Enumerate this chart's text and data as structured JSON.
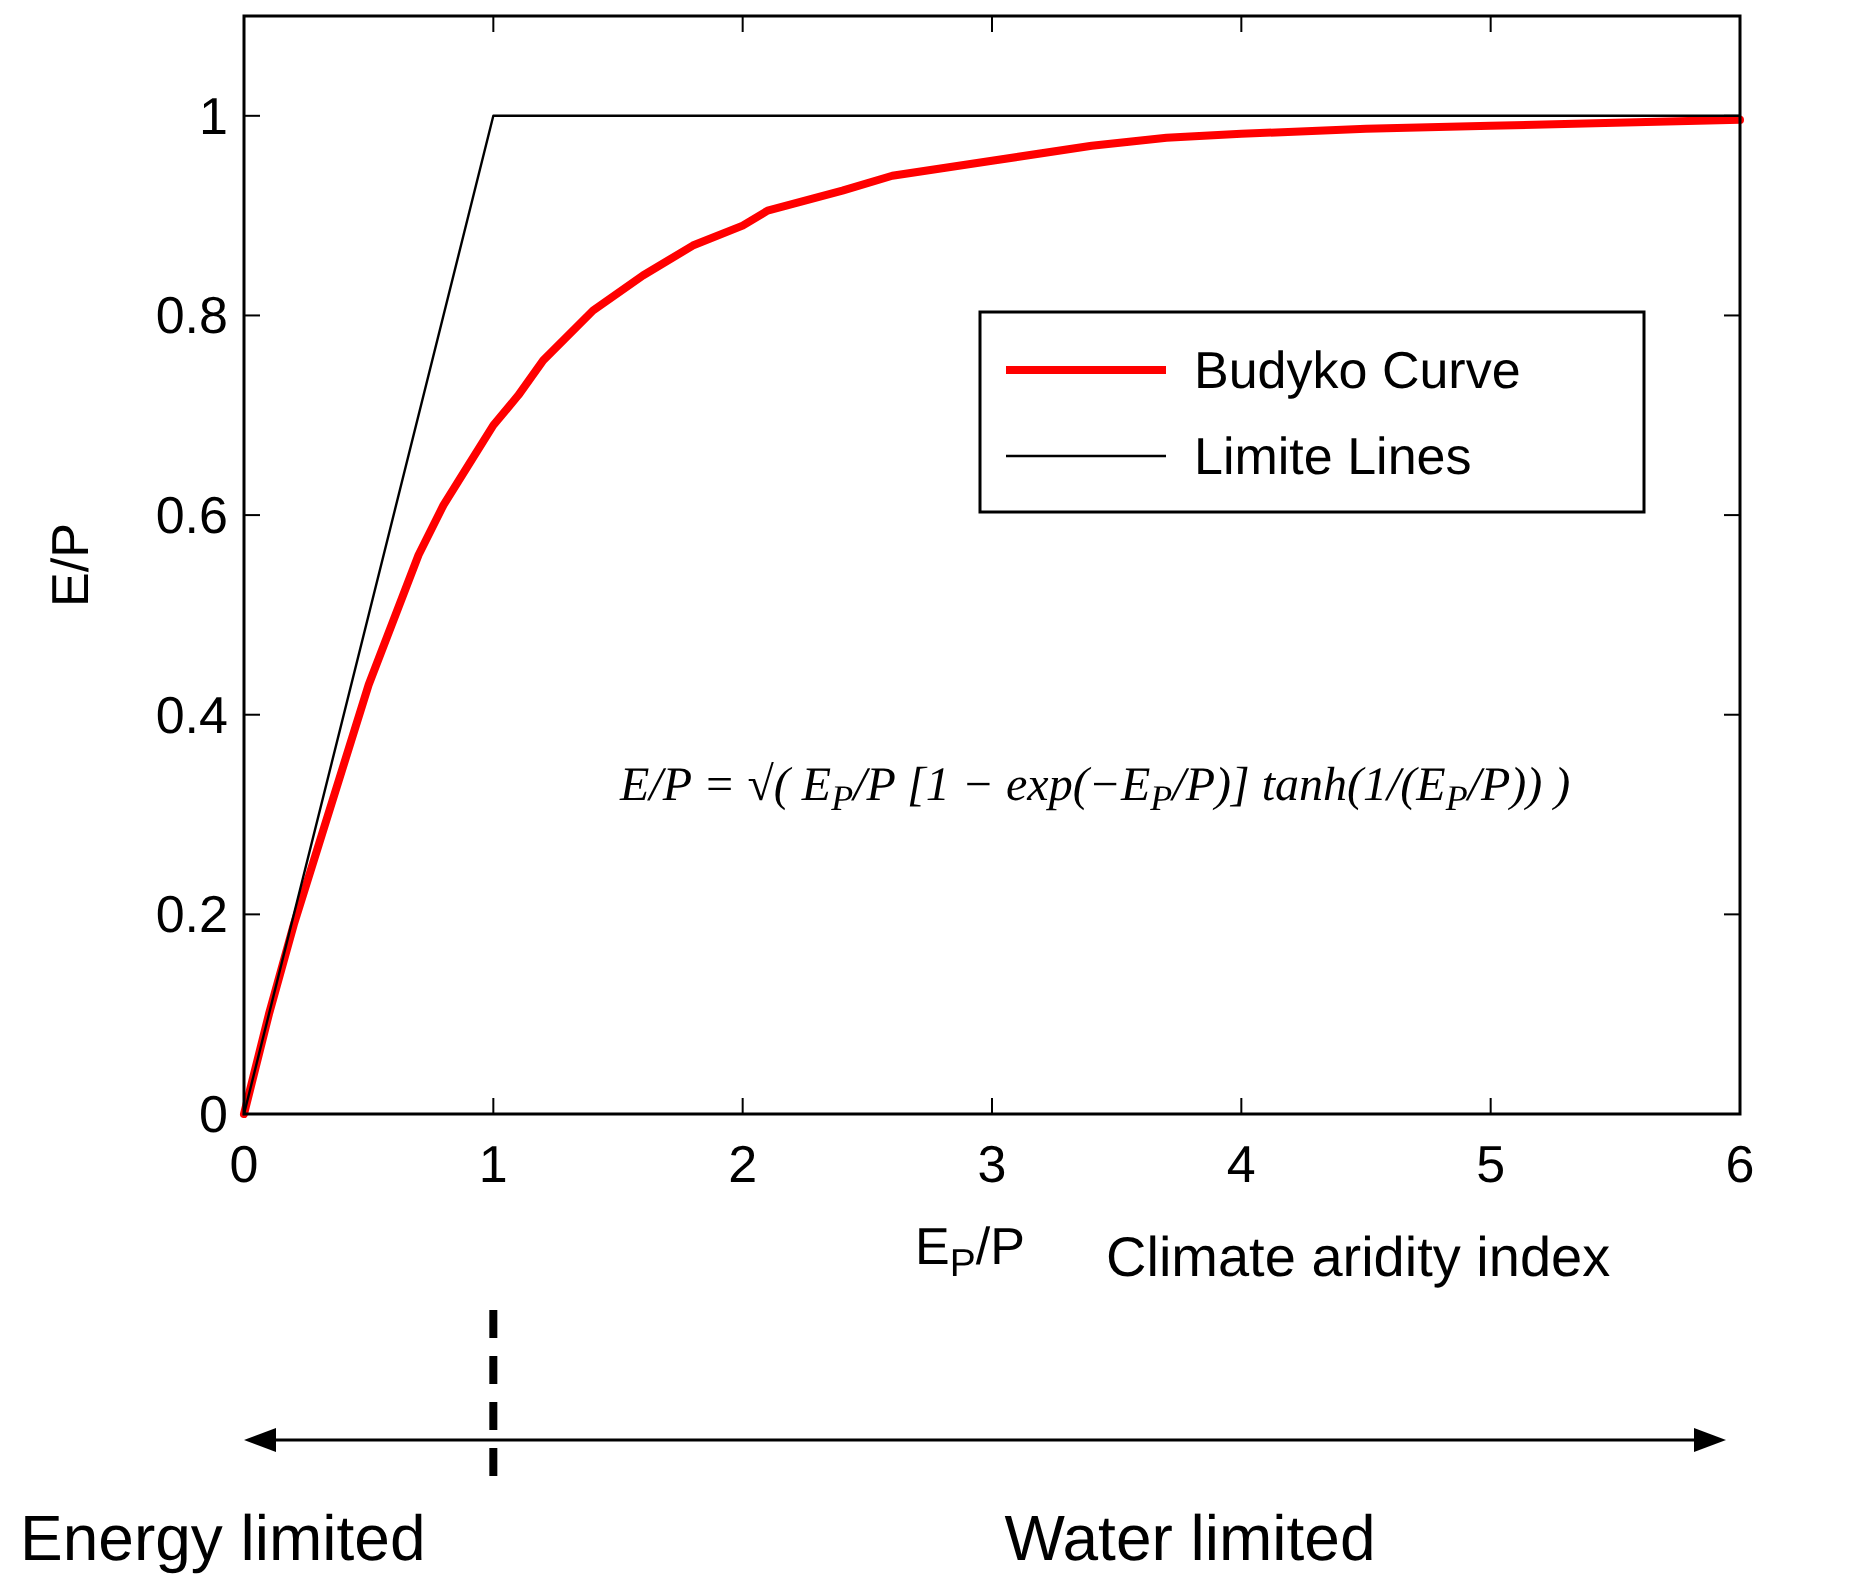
{
  "chart_data": {
    "type": "line",
    "xlabel": "E$_{P}$/P",
    "ylabel": "E/P",
    "xlim": [
      0,
      6
    ],
    "xticks": [
      0,
      1,
      2,
      3,
      4,
      5,
      6
    ],
    "ylim": [
      0,
      1.1
    ],
    "yticks": [
      0,
      0.2,
      0.4,
      0.6,
      0.8,
      1
    ],
    "grid": false,
    "legend": "right",
    "series": [
      {
        "name": "Budyko Curve",
        "color": "#ff0000",
        "x": [
          0,
          0.1,
          0.2,
          0.3,
          0.5,
          0.7,
          0.8,
          0.9,
          1.0,
          1.1,
          1.2,
          1.4,
          1.6,
          1.8,
          2.0,
          2.1,
          2.4,
          2.6,
          3.0,
          3.4,
          3.7,
          4.0,
          4.5,
          5.0,
          5.5,
          6.0
        ],
        "values": [
          0,
          0.1,
          0.19,
          0.27,
          0.43,
          0.56,
          0.61,
          0.65,
          0.69,
          0.72,
          0.755,
          0.805,
          0.84,
          0.87,
          0.89,
          0.905,
          0.925,
          0.94,
          0.955,
          0.97,
          0.978,
          0.982,
          0.987,
          0.99,
          0.993,
          0.996
        ]
      },
      {
        "name": "Limite Lines",
        "color": "#000000",
        "x": [
          0,
          1,
          6
        ],
        "values": [
          0,
          1,
          1
        ]
      }
    ],
    "annotations": [
      "E/P = √( E$_{P}$/P [1 − exp(−E$_{P}$/P)] tanh(1/(E$_{P}$/P)) )",
      "Climate aridity index",
      "Energy limited",
      "Water limited"
    ]
  }
}
